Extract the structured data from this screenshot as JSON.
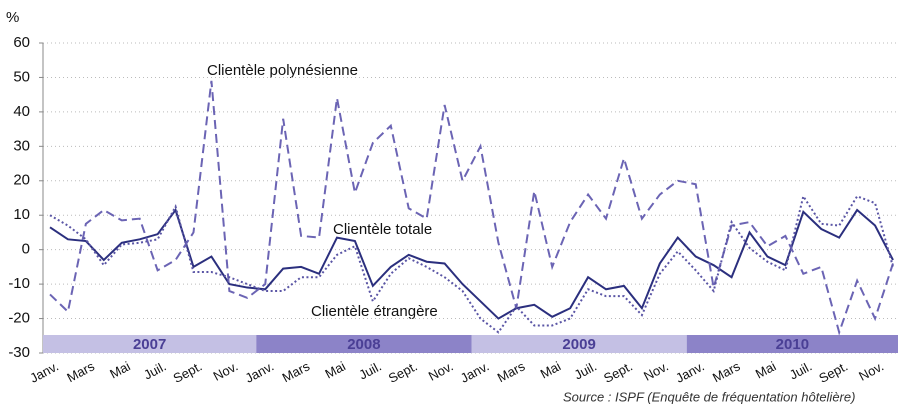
{
  "chart_data": {
    "type": "line",
    "y_unit_label": "%",
    "categories": [
      "Janv.",
      null,
      "Mars",
      null,
      "Mai",
      null,
      "Juil.",
      null,
      "Sept.",
      null,
      "Nov.",
      null,
      "Janv.",
      null,
      "Mars",
      null,
      "Mai",
      null,
      "Juil.",
      null,
      "Sept.",
      null,
      "Nov.",
      null,
      "Janv.",
      null,
      "Mars",
      null,
      "Mai",
      null,
      "Juil.",
      null,
      "Sept.",
      null,
      "Nov.",
      null,
      "Janv.",
      null,
      "Mars",
      null,
      "Mai",
      null,
      "Juil.",
      null,
      "Sept.",
      null,
      "Nov.",
      null
    ],
    "year_bands": [
      "2007",
      "2008",
      "2009",
      "2010"
    ],
    "series": [
      {
        "name": "Clientèle totale",
        "color": "#2b2f7e",
        "dash": "none",
        "values": [
          6.5,
          3,
          2.5,
          -3,
          2,
          3,
          4.5,
          11.5,
          -5,
          -2,
          -10,
          -11,
          -11.5,
          -5.5,
          -5,
          -7,
          3.5,
          2.5,
          -10.5,
          -5,
          -1.5,
          -3.5,
          -4,
          -10,
          -15,
          -20,
          -17,
          -16,
          -19.5,
          -17,
          -8,
          -11.5,
          -10.5,
          -17,
          -4,
          3.5,
          -2,
          -4.5,
          -8,
          5,
          -2,
          -4.5,
          11,
          6,
          3.5,
          11.5,
          7,
          -3
        ]
      },
      {
        "name": "Clientèle polynésienne",
        "color": "#6b64b4",
        "dash": "9,5",
        "values": [
          -13,
          -18,
          7.5,
          11.5,
          8.5,
          9,
          -6,
          -3,
          5,
          49,
          -12,
          -14,
          -10,
          38,
          4,
          3.5,
          44,
          16.5,
          31,
          36,
          12,
          9,
          42,
          20,
          30,
          2,
          -17,
          17,
          -5,
          8,
          16,
          9,
          26.5,
          9,
          16,
          20,
          19,
          -11,
          7,
          8,
          1,
          4,
          -7,
          -5,
          -24,
          -9,
          -20,
          -4
        ]
      },
      {
        "name": "Clientèle étrangère",
        "color": "#5a55a5",
        "dash": "2,2.5",
        "values": [
          10,
          7,
          3,
          -4.5,
          1.5,
          2,
          3,
          12.5,
          -6.5,
          -6.5,
          -8,
          -10,
          -12,
          -12,
          -8,
          -8,
          -1.5,
          1,
          -15,
          -7,
          -2.5,
          -5,
          -8,
          -12,
          -20,
          -24,
          -16.5,
          -22,
          -22,
          -20,
          -11.5,
          -13.5,
          -13.5,
          -19,
          -7,
          -0.5,
          -6,
          -12,
          8,
          0.5,
          -3.5,
          -6,
          15.5,
          7.5,
          7,
          15.5,
          13.5,
          -5
        ]
      }
    ],
    "ylim": [
      -30,
      60
    ],
    "yticks": [
      -30,
      -20,
      -10,
      0,
      10,
      20,
      30,
      40,
      50,
      60
    ],
    "grid": true,
    "source": "Source : ISPF (Enquête de fréquentation hôtelière)"
  }
}
